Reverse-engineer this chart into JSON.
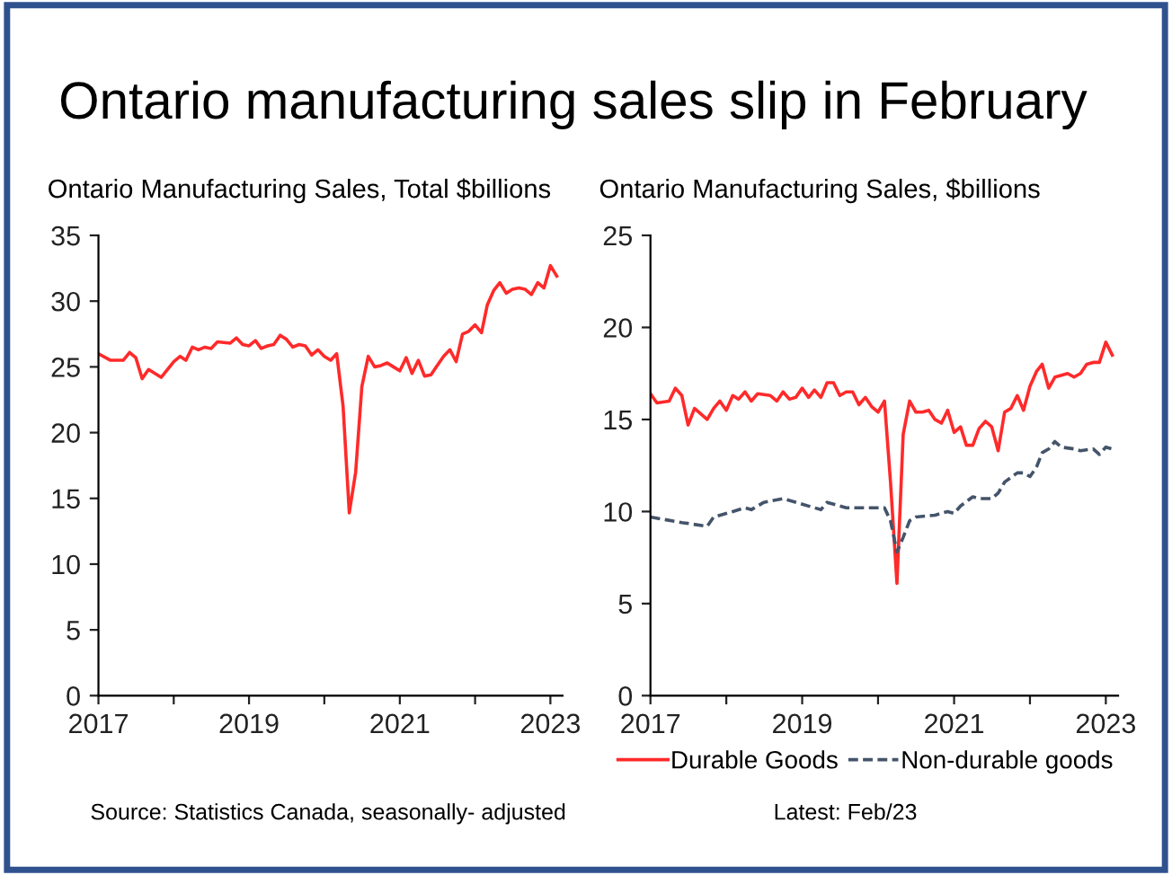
{
  "chart_data": [
    {
      "type": "line",
      "title": "Ontario manufacturing sales slip in February",
      "subtitle": "Ontario Manufacturing Sales, Total $billions",
      "annotations": [
        "Source: Statistics Canada, seasonally- adjusted",
        "Latest: Feb/23"
      ],
      "series": [
        {
          "color": "#ff2a2a",
          "x": [
            "2017-01",
            "2017-03",
            "2017-05",
            "2017-06",
            "2017-07",
            "2017-08",
            "2017-09",
            "2017-11",
            "2018-01",
            "2018-02",
            "2018-03",
            "2018-04",
            "2018-05",
            "2018-06",
            "2018-07",
            "2018-08",
            "2018-10",
            "2018-11",
            "2018-12",
            "2019-01",
            "2019-02",
            "2019-03",
            "2019-04",
            "2019-05",
            "2019-06",
            "2019-07",
            "2019-08",
            "2019-09",
            "2019-10",
            "2019-11",
            "2019-12",
            "2020-01",
            "2020-02",
            "2020-03",
            "2020-04",
            "2020-05",
            "2020-06",
            "2020-07",
            "2020-08",
            "2020-09",
            "2020-10",
            "2020-11",
            "2020-12",
            "2021-01",
            "2021-02",
            "2021-03",
            "2021-04",
            "2021-05",
            "2021-06",
            "2021-07",
            "2021-08",
            "2021-09",
            "2021-10",
            "2021-11",
            "2021-12",
            "2022-01",
            "2022-02",
            "2022-03",
            "2022-04",
            "2022-05",
            "2022-06",
            "2022-07",
            "2022-08",
            "2022-09",
            "2022-10",
            "2022-11",
            "2022-12",
            "2023-01",
            "2023-02"
          ],
          "values": [
            26.0,
            25.5,
            25.5,
            26.1,
            25.7,
            24.1,
            24.8,
            24.2,
            25.4,
            25.8,
            25.5,
            26.5,
            26.3,
            26.5,
            26.4,
            26.9,
            26.8,
            27.2,
            26.7,
            26.6,
            27.0,
            26.4,
            26.6,
            26.7,
            27.4,
            27.1,
            26.5,
            26.7,
            26.6,
            25.9,
            26.3,
            25.8,
            25.5,
            26.0,
            22.0,
            13.9,
            17.0,
            23.5,
            25.8,
            25.0,
            25.1,
            25.3,
            25.0,
            24.7,
            25.7,
            24.5,
            25.5,
            24.3,
            24.4,
            25.1,
            25.8,
            26.3,
            25.4,
            27.5,
            27.7,
            28.2,
            27.6,
            29.7,
            30.8,
            31.4,
            30.6,
            30.9,
            31.0,
            30.9,
            30.5,
            31.4,
            31.0,
            32.7,
            31.9
          ]
        }
      ],
      "xlim": [
        "2017-01",
        "2023-03"
      ],
      "xticks": [
        {
          "value": "2017",
          "label": "2017"
        },
        {
          "value": "2018",
          "label": null
        },
        {
          "value": "2019",
          "label": "2019"
        },
        {
          "value": "2020",
          "label": null
        },
        {
          "value": "2021",
          "label": "2021"
        },
        {
          "value": "2022",
          "label": null
        },
        {
          "value": "2023",
          "label": "2023"
        }
      ],
      "ylim": [
        0,
        35
      ],
      "yticks": [
        0,
        5,
        10,
        15,
        20,
        25,
        30,
        35
      ],
      "grid": false,
      "legend": false,
      "line_style": "solid"
    },
    {
      "type": "line",
      "subtitle": "Ontario Manufacturing Sales, $billions",
      "series": [
        {
          "name": "Durable Goods",
          "color": "#ff2a2a",
          "line_style": "solid",
          "x": [
            "2017-01",
            "2017-02",
            "2017-04",
            "2017-05",
            "2017-06",
            "2017-07",
            "2017-08",
            "2017-10",
            "2017-11",
            "2017-12",
            "2018-01",
            "2018-02",
            "2018-03",
            "2018-04",
            "2018-05",
            "2018-06",
            "2018-08",
            "2018-09",
            "2018-10",
            "2018-11",
            "2018-12",
            "2019-01",
            "2019-02",
            "2019-03",
            "2019-04",
            "2019-05",
            "2019-06",
            "2019-07",
            "2019-08",
            "2019-09",
            "2019-10",
            "2019-11",
            "2019-12",
            "2020-01",
            "2020-02",
            "2020-03",
            "2020-04",
            "2020-05",
            "2020-06",
            "2020-07",
            "2020-08",
            "2020-09",
            "2020-10",
            "2020-11",
            "2020-12",
            "2021-01",
            "2021-02",
            "2021-03",
            "2021-04",
            "2021-05",
            "2021-06",
            "2021-07",
            "2021-08",
            "2021-09",
            "2021-10",
            "2021-11",
            "2021-12",
            "2022-01",
            "2022-02",
            "2022-03",
            "2022-04",
            "2022-05",
            "2022-06",
            "2022-07",
            "2022-08",
            "2022-09",
            "2022-10",
            "2022-11",
            "2022-12",
            "2023-01",
            "2023-02"
          ],
          "values": [
            16.4,
            15.9,
            16.0,
            16.7,
            16.3,
            14.7,
            15.6,
            15.0,
            15.6,
            16.0,
            15.5,
            16.3,
            16.1,
            16.5,
            16.0,
            16.4,
            16.3,
            16.0,
            16.5,
            16.1,
            16.2,
            16.7,
            16.2,
            16.6,
            16.2,
            17.0,
            17.0,
            16.3,
            16.5,
            16.5,
            15.8,
            16.2,
            15.7,
            15.4,
            16.0,
            11.6,
            6.1,
            14.2,
            16.0,
            15.4,
            15.4,
            15.5,
            15.0,
            14.8,
            15.5,
            14.3,
            14.6,
            13.6,
            13.6,
            14.5,
            14.9,
            14.6,
            13.3,
            15.4,
            15.6,
            16.3,
            15.5,
            16.8,
            17.6,
            18.0,
            16.7,
            17.3,
            17.4,
            17.5,
            17.3,
            17.5,
            18.0,
            18.1,
            18.1,
            19.2,
            18.5
          ]
        },
        {
          "name": "Non-durable goods",
          "color": "#44546a",
          "line_style": "dashed",
          "x": [
            "2017-01",
            "2017-06",
            "2017-10",
            "2017-11",
            "2018-02",
            "2018-04",
            "2018-05",
            "2018-07",
            "2018-10",
            "2019-01",
            "2019-04",
            "2019-05",
            "2019-08",
            "2019-12",
            "2020-02",
            "2020-03",
            "2020-04",
            "2020-05",
            "2020-06",
            "2020-07",
            "2020-10",
            "2020-12",
            "2021-01",
            "2021-02",
            "2021-04",
            "2021-05",
            "2021-07",
            "2021-08",
            "2021-09",
            "2021-11",
            "2021-12",
            "2022-01",
            "2022-02",
            "2022-03",
            "2022-04",
            "2022-05",
            "2022-06",
            "2022-08",
            "2022-09",
            "2022-11",
            "2022-12",
            "2023-01",
            "2023-02"
          ],
          "values": [
            9.7,
            9.4,
            9.2,
            9.7,
            10.0,
            10.2,
            10.1,
            10.5,
            10.7,
            10.4,
            10.1,
            10.5,
            10.2,
            10.2,
            10.2,
            9.5,
            7.8,
            8.6,
            9.5,
            9.7,
            9.8,
            10.0,
            9.9,
            10.3,
            10.8,
            10.7,
            10.7,
            11.0,
            11.6,
            12.1,
            12.1,
            11.9,
            12.4,
            13.2,
            13.4,
            13.8,
            13.5,
            13.4,
            13.3,
            13.4,
            13.1,
            13.5,
            13.4
          ]
        }
      ],
      "xlim": [
        "2017-01",
        "2023-03"
      ],
      "xticks": [
        {
          "value": "2017",
          "label": "2017"
        },
        {
          "value": "2018",
          "label": null
        },
        {
          "value": "2019",
          "label": "2019"
        },
        {
          "value": "2020",
          "label": null
        },
        {
          "value": "2021",
          "label": "2021"
        },
        {
          "value": "2022",
          "label": null
        },
        {
          "value": "2023",
          "label": "2023"
        }
      ],
      "ylim": [
        0,
        25
      ],
      "yticks": [
        0,
        5,
        10,
        15,
        20,
        25
      ],
      "grid": false,
      "legend": "bottom"
    }
  ]
}
